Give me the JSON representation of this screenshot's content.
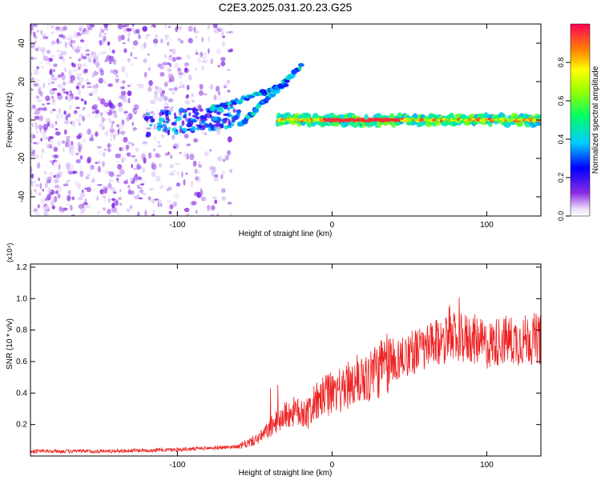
{
  "title": "C2E3.2025.031.20.23.G25",
  "colors": {
    "snr_line": "#ee2222",
    "axis": "#000000"
  },
  "chart_data": [
    {
      "type": "heatmap",
      "xlabel": "Height of straight line (km)",
      "ylabel": "Frequency (Hz)",
      "xlim": [
        -195,
        135
      ],
      "ylim": [
        -50,
        50
      ],
      "xticks": [
        -100,
        0,
        100
      ],
      "xtick_labels": [
        "-100",
        "0",
        "100"
      ],
      "yticks": [
        -40,
        -20,
        0,
        20,
        40
      ],
      "ytick_labels": [
        "-40",
        "-20",
        "0",
        "20",
        "40"
      ],
      "colorbar": {
        "label": "Normalized spectral amplitude",
        "range": [
          0,
          1
        ],
        "ticks": [
          0.0,
          0.2,
          0.4,
          0.6,
          0.8
        ],
        "tick_labels": [
          "0.0",
          "0.2",
          "0.4",
          "0.6",
          "0.8"
        ],
        "colormap": "rainbow (white-violet-blue-cyan-green-yellow-red)"
      },
      "features": [
        {
          "description": "scattered low-amplitude noise",
          "x_range": [
            -195,
            -65
          ],
          "freq_range": [
            -50,
            50
          ],
          "amplitude": 0.1
        },
        {
          "description": "Doppler branch rising",
          "x_start": -60,
          "x_end": -20,
          "freq_start": -3,
          "freq_end": 28,
          "amplitude": 0.3
        },
        {
          "description": "Doppler branch rising",
          "x_start": -80,
          "x_end": -30,
          "freq_start": 5,
          "freq_end": 18,
          "amplitude": 0.3
        },
        {
          "description": "strong carrier line near 0 Hz",
          "x_start": -35,
          "x_end": 135,
          "freq": 0,
          "amplitude": 0.95
        }
      ]
    },
    {
      "type": "line",
      "xlabel": "Height of straight line (km)",
      "ylabel": "SNR (10 * v/v)",
      "y_multiplier": "(x10⁴)",
      "xlim": [
        -195,
        135
      ],
      "ylim": [
        0,
        1.22
      ],
      "xticks": [
        -100,
        0,
        100
      ],
      "xtick_labels": [
        "-100",
        "0",
        "100"
      ],
      "yticks": [
        0.2,
        0.4,
        0.6,
        0.8,
        1.0,
        1.2
      ],
      "ytick_labels": [
        "0.2",
        "0.4",
        "0.6",
        "0.8",
        "1.0",
        "1.2"
      ],
      "series": [
        {
          "x": [
            -195,
            -150,
            -100,
            -80,
            -60,
            -50,
            -45,
            -40,
            -35,
            -30,
            -25,
            -20,
            -15,
            -10,
            -5,
            0,
            5,
            10,
            20,
            30,
            40,
            45,
            50,
            55,
            60,
            70,
            75,
            80,
            90,
            100,
            110,
            120,
            130,
            135
          ],
          "y": [
            0.03,
            0.03,
            0.04,
            0.05,
            0.06,
            0.1,
            0.13,
            0.18,
            0.23,
            0.26,
            0.28,
            0.27,
            0.29,
            0.33,
            0.38,
            0.4,
            0.42,
            0.45,
            0.5,
            0.55,
            0.6,
            0.63,
            0.66,
            0.67,
            0.68,
            0.72,
            0.78,
            0.74,
            0.75,
            0.7,
            0.74,
            0.73,
            0.75,
            0.74
          ]
        }
      ]
    }
  ]
}
